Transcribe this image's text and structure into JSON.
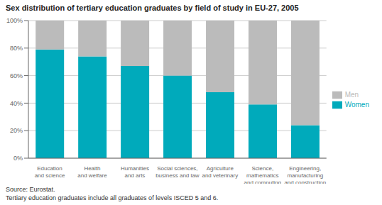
{
  "chart_data": {
    "type": "bar",
    "stacked": true,
    "title": "Sex distribution of tertiary education graduates by field of study in EU-27, 2005",
    "categories": [
      "Education\nand science",
      "Health\nand welfare",
      "Humanities\nand arts",
      "Social sciences,\nbusiness and law",
      "Agriculture\nand veterinary",
      "Science,\nmathematics\nand computing",
      "Engineering,\nmanufacturing\nand construction"
    ],
    "series": [
      {
        "name": "Women",
        "color": "#00AABB",
        "values": [
          79,
          74,
          67,
          60,
          48,
          39,
          24
        ]
      },
      {
        "name": "Men",
        "color": "#BBBBBB",
        "values": [
          21,
          26,
          33,
          40,
          52,
          61,
          76
        ]
      }
    ],
    "ylim": [
      0,
      100
    ],
    "yticks": [
      {
        "value": 0,
        "label": "0%"
      },
      {
        "value": 20,
        "label": "20%"
      },
      {
        "value": 40,
        "label": "40%"
      },
      {
        "value": 60,
        "label": "60%"
      },
      {
        "value": 80,
        "label": "80%"
      },
      {
        "value": 100,
        "label": "100%"
      }
    ],
    "grid": true,
    "legend": "right",
    "annotations": [
      "Source: Eurostat.\nTertiary education graduates include all graduates of levels ISCED 5 and 6."
    ]
  }
}
